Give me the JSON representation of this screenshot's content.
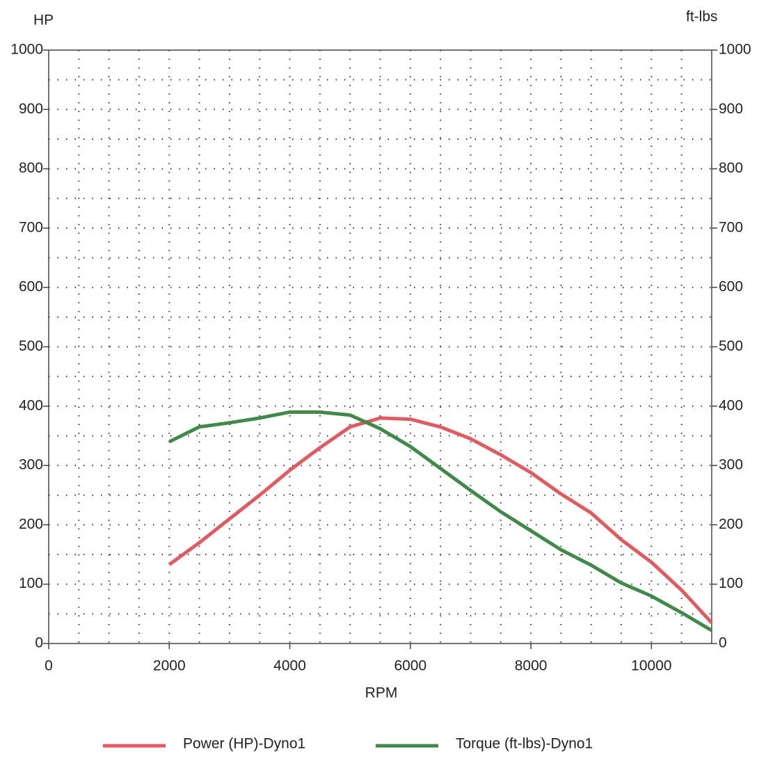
{
  "chart_data": {
    "type": "line",
    "y_label": "HP",
    "y2_label": "ft-lbs",
    "x_label": "RPM",
    "x": [
      2000,
      2500,
      3000,
      3500,
      4000,
      4500,
      5000,
      5500,
      6000,
      6500,
      7000,
      7500,
      8000,
      8500,
      9000,
      9500,
      10000,
      10500,
      11000
    ],
    "series": [
      {
        "name": "Power (HP)-Dyno1",
        "color": "#e05a5f",
        "values": [
          133,
          170,
          210,
          250,
          292,
          330,
          365,
          380,
          378,
          365,
          345,
          318,
          288,
          252,
          220,
          175,
          137,
          90,
          35
        ]
      },
      {
        "name": "Torque (ft-lbs)-Dyno1",
        "color": "#3f8a4a",
        "axis": "y2",
        "values": [
          340,
          365,
          372,
          380,
          390,
          390,
          385,
          362,
          332,
          295,
          258,
          222,
          190,
          158,
          132,
          102,
          80,
          52,
          22
        ]
      }
    ],
    "xlim": [
      0,
      11000
    ],
    "xticks": [
      0,
      2000,
      4000,
      6000,
      8000,
      10000
    ],
    "ylim": [
      0,
      1000
    ],
    "yticks": [
      0,
      100,
      200,
      300,
      400,
      500,
      600,
      700,
      800,
      900,
      1000
    ],
    "y2lim": [
      0,
      1000
    ],
    "y2ticks": [
      0,
      100,
      200,
      300,
      400,
      500,
      600,
      700,
      800,
      900,
      1000
    ],
    "grid": true,
    "minor_step": {
      "x": 500,
      "y": 50
    },
    "legend": "bottom"
  }
}
